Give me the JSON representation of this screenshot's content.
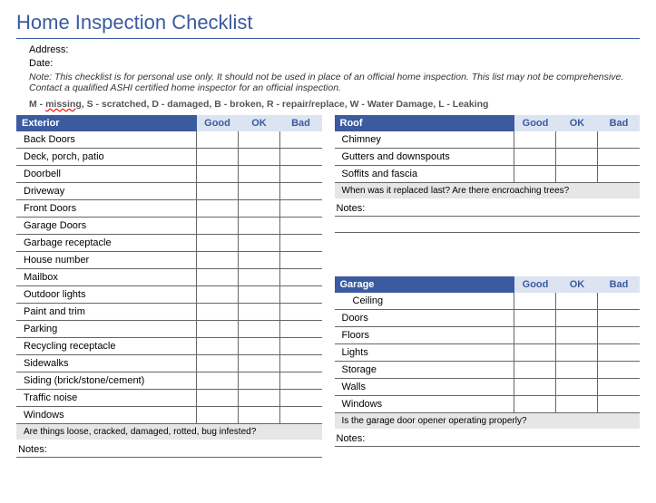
{
  "title": "Home Inspection Checklist",
  "fields": {
    "address_label": "Address:",
    "date_label": "Date:"
  },
  "note": "Note: This checklist is for personal use only. It should not be used in place of an official home inspection. This list may not be comprehensive. Contact a qualified ASHI certified home inspector for an official inspection.",
  "legend": {
    "m": "M - ",
    "missing": "missing",
    "rest": ",  S - scratched,  D - damaged,  B - broken,  R - repair/replace,  W - Water Damage,  L - Leaking"
  },
  "ratings": {
    "good": "Good",
    "ok": "OK",
    "bad": "Bad"
  },
  "notes_label": "Notes:",
  "sections": {
    "exterior": {
      "name": "Exterior",
      "items": [
        "Back Doors",
        "Deck, porch, patio",
        "Doorbell",
        "Driveway",
        "Front Doors",
        "Garage Doors",
        "Garbage receptacle",
        "House number",
        "Mailbox",
        "Outdoor lights",
        "Paint and trim",
        "Parking",
        "Recycling receptacle",
        "Sidewalks",
        "Siding (brick/stone/cement)",
        "Traffic noise",
        "Windows"
      ],
      "prompt": "Are things loose, cracked, damaged, rotted, bug infested?"
    },
    "roof": {
      "name": "Roof",
      "items": [
        "Chimney",
        "Gutters and downspouts",
        "Soffits and fascia"
      ],
      "prompt": "When was it replaced last? Are there encroaching trees?"
    },
    "garage": {
      "name": "Garage",
      "items": [
        "Ceiling",
        "Doors",
        "Floors",
        "Lights",
        "Storage",
        "Walls",
        "Windows"
      ],
      "indent_first": true,
      "prompt": "Is the garage door opener operating properly?"
    }
  },
  "colors": {
    "header_bg": "#3a5ba0",
    "header_text": "#ffffff",
    "rating_bg": "#dce4f2",
    "rating_text": "#3a5ba0",
    "prompt_bg": "#e6e6e6",
    "border": "#666666"
  }
}
